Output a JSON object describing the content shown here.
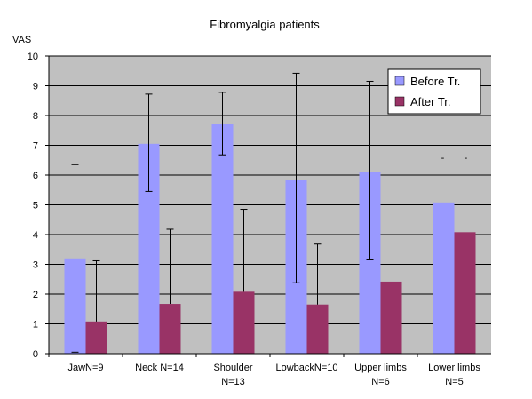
{
  "chart_data": {
    "type": "bar",
    "title": "Fibromyalgia patients",
    "ylabel": "VAS",
    "xlabel": "",
    "ylim": [
      0,
      10
    ],
    "yticks": [
      0,
      1,
      2,
      3,
      4,
      5,
      6,
      7,
      8,
      9,
      10
    ],
    "grid": true,
    "legend_position": "top-right",
    "categories": [
      [
        "JawN=9"
      ],
      [
        "Neck N=14"
      ],
      [
        "Shoulder",
        "N=13"
      ],
      [
        "LowbackN=10"
      ],
      [
        "Upper limbs",
        "N=6"
      ],
      [
        "Lower limbs",
        "N=5"
      ]
    ],
    "series": [
      {
        "name": "Before Tr.",
        "color": "#9999ff",
        "values": [
          3.2,
          7.05,
          7.72,
          5.85,
          6.1,
          5.08
        ],
        "error_low": [
          0.05,
          5.45,
          6.68,
          2.38,
          3.15,
          null
        ],
        "error_high": [
          6.35,
          8.72,
          8.78,
          9.42,
          9.15,
          null
        ]
      },
      {
        "name": "After Tr.",
        "color": "#993366",
        "values": [
          1.08,
          1.67,
          2.08,
          1.65,
          2.42,
          4.08
        ],
        "error_low": [
          null,
          null,
          null,
          null,
          null,
          null
        ],
        "error_high": [
          3.12,
          4.18,
          4.85,
          3.68,
          null,
          null
        ]
      }
    ],
    "annotations": [
      "-",
      "-"
    ]
  }
}
